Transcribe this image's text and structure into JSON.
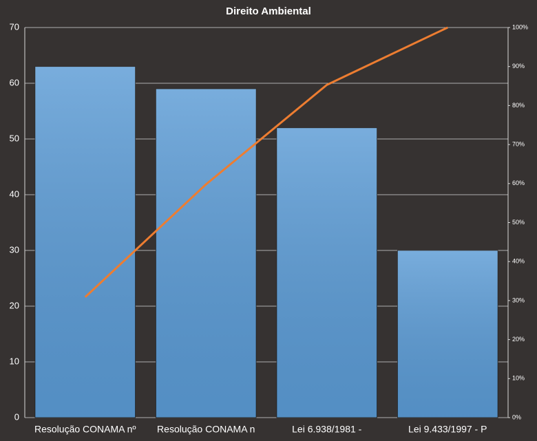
{
  "chart_data": {
    "type": "pareto",
    "title": "Direito  Ambiental",
    "categories": [
      "Resolução CONAMA nº",
      "Resolução CONAMA n",
      "Lei 6.938/1981 -",
      "Lei 9.433/1997 - P"
    ],
    "series": [
      {
        "type": "bar",
        "color": "#5b9bd5",
        "values": [
          63,
          59,
          52,
          30
        ]
      },
      {
        "type": "line",
        "color": "#ed7d31",
        "axis": "y2",
        "values": [
          30.9,
          59.8,
          85.3,
          100
        ]
      }
    ],
    "ylim": [
      0,
      70
    ],
    "yticks": [
      0,
      10,
      20,
      30,
      40,
      50,
      60,
      70
    ],
    "y2lim": [
      0,
      100
    ],
    "y2ticks": [
      {
        "value": 0,
        "label": "0%"
      },
      {
        "value": 10,
        "label": "10%"
      },
      {
        "value": 20,
        "label": "20%"
      },
      {
        "value": 30,
        "label": "30%"
      },
      {
        "value": 40,
        "label": "40%"
      },
      {
        "value": 50,
        "label": "50%"
      },
      {
        "value": 60,
        "label": "60%"
      },
      {
        "value": 70,
        "label": "70%"
      },
      {
        "value": 80,
        "label": "80%"
      },
      {
        "value": 90,
        "label": "90%"
      },
      {
        "value": 100,
        "label": "100%"
      }
    ],
    "grid": true
  }
}
